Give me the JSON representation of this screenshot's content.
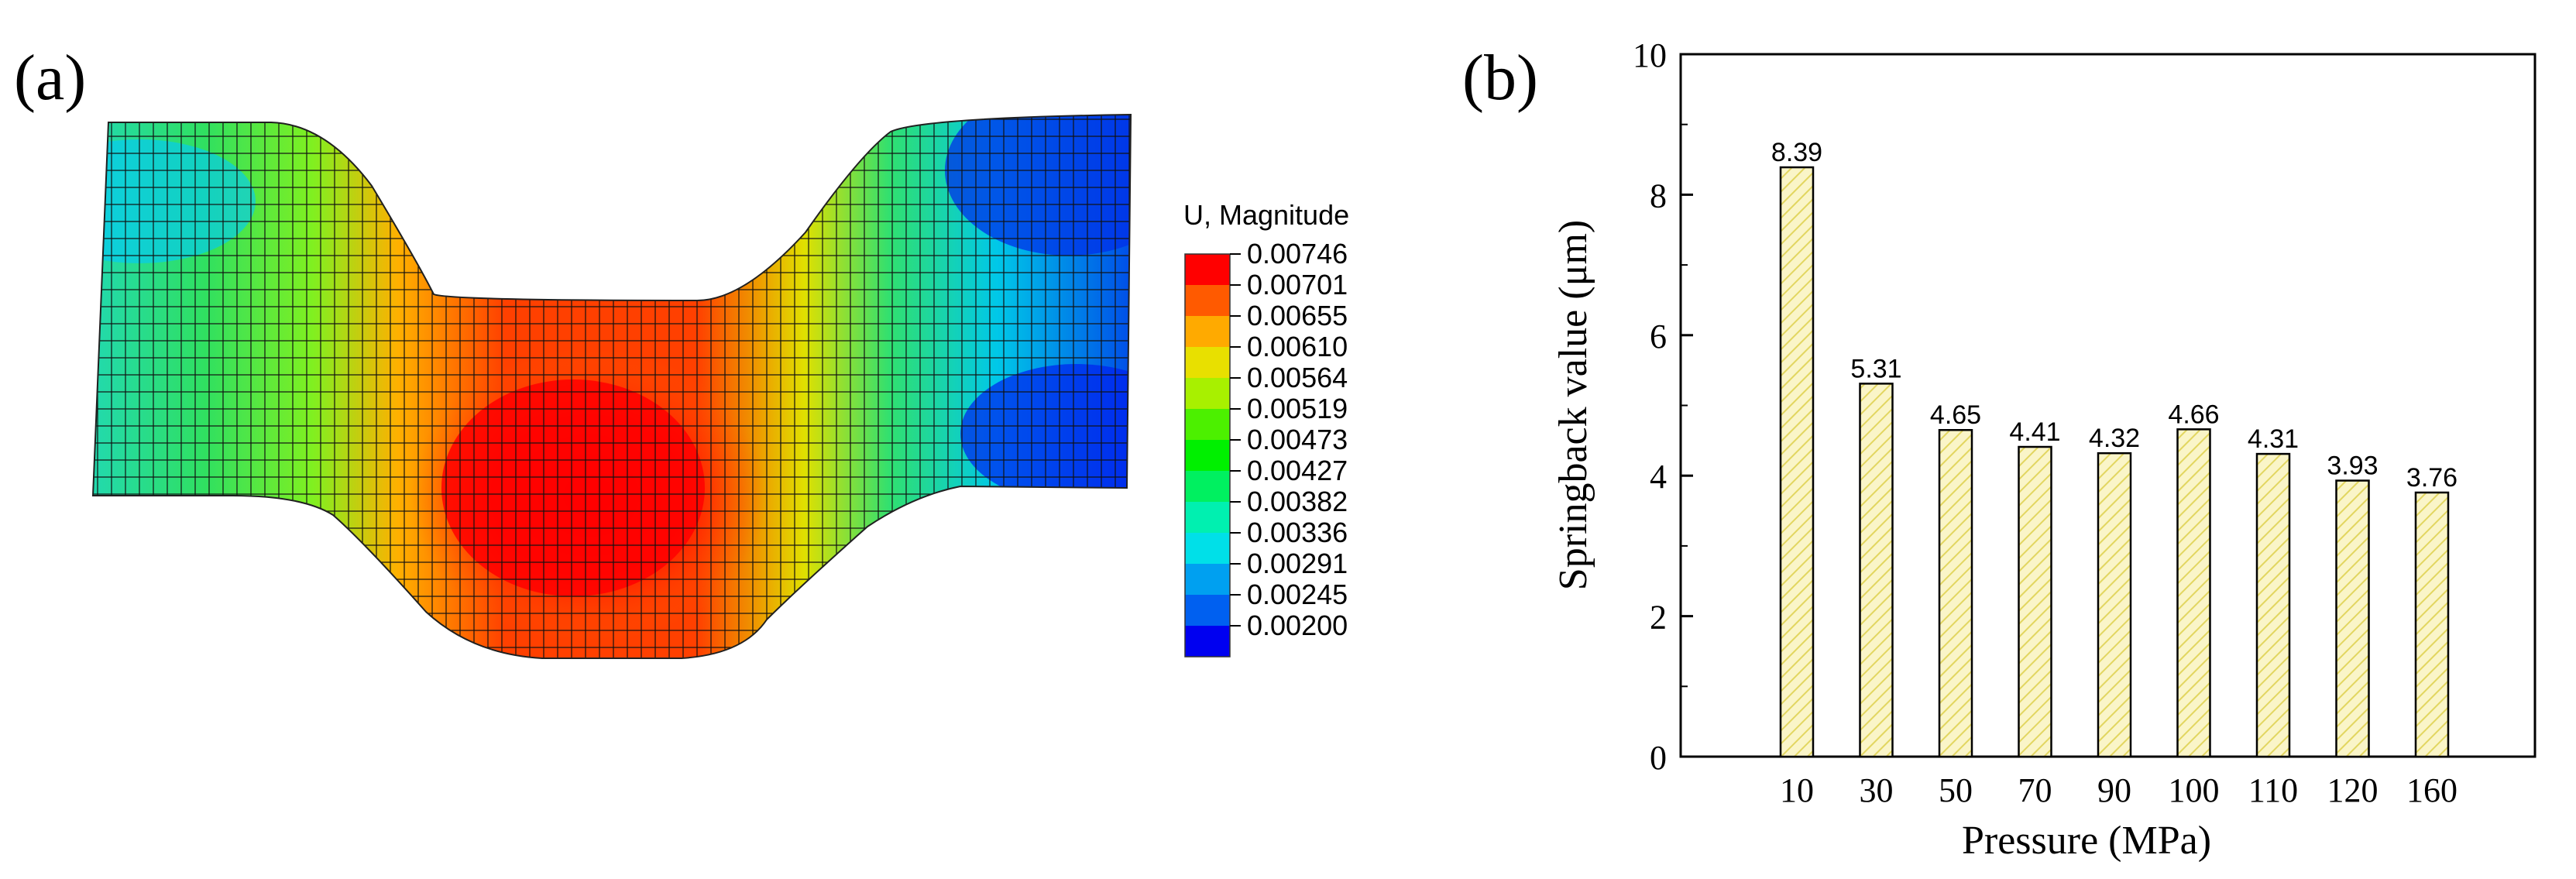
{
  "panel_a": {
    "label": "(a)",
    "legend_title": "U, Magnitude",
    "legend_values": [
      "0.00746",
      "0.00701",
      "0.00655",
      "0.00610",
      "0.00564",
      "0.00519",
      "0.00473",
      "0.00427",
      "0.00382",
      "0.00336",
      "0.00291",
      "0.00245",
      "0.00200"
    ],
    "legend_colors": [
      "#ff0000",
      "#ff5a00",
      "#ffaa00",
      "#e8e000",
      "#a8f000",
      "#4cf000",
      "#00f000",
      "#00f060",
      "#00f0b0",
      "#00e0e8",
      "#00a0f0",
      "#0060f0",
      "#0000f0"
    ]
  },
  "panel_b": {
    "label": "(b)"
  },
  "chart_data": {
    "type": "bar",
    "categories": [
      "10",
      "30",
      "50",
      "70",
      "90",
      "100",
      "110",
      "120",
      "160"
    ],
    "values": [
      8.39,
      5.31,
      4.65,
      4.41,
      4.32,
      4.66,
      4.31,
      3.93,
      3.76
    ],
    "value_labels": [
      "8.39",
      "5.31",
      "4.65",
      "4.41",
      "4.32",
      "4.66",
      "4.31",
      "3.93",
      "3.76"
    ],
    "title": "",
    "xlabel": "Pressure (MPa)",
    "ylabel": "Springback value (μm)",
    "ylim": [
      0,
      10
    ],
    "yticks": [
      "0",
      "2",
      "4",
      "6",
      "8",
      "10"
    ],
    "bar_fill": "#faf5c8",
    "bar_hatch": "#e2d660",
    "bar_edge": "#000000"
  }
}
